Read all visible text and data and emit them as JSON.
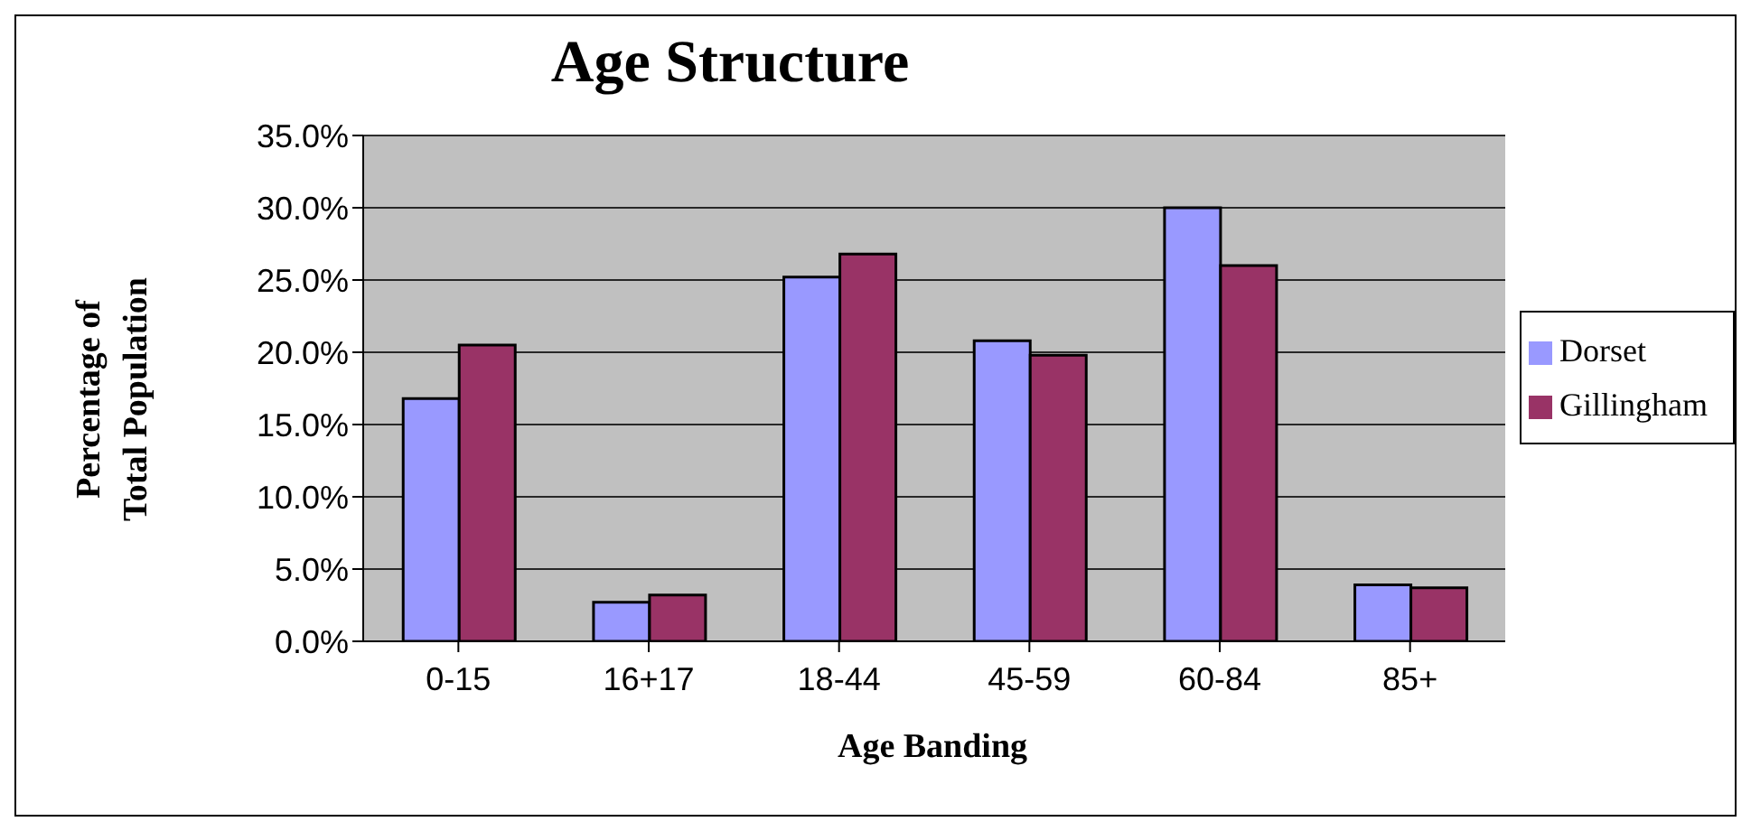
{
  "chart_data": {
    "type": "bar",
    "title": "Age Structure",
    "xlabel": "Age Banding",
    "ylabel": "Percentage of\nTotal Population",
    "categories": [
      "0-15",
      "16+17",
      "18-44",
      "45-59",
      "60-84",
      "85+"
    ],
    "series": [
      {
        "name": "Dorset",
        "color": "#9999ff",
        "values": [
          16.8,
          2.7,
          25.2,
          20.8,
          30.0,
          3.9
        ]
      },
      {
        "name": "Gillingham",
        "color": "#993366",
        "values": [
          20.5,
          3.2,
          26.8,
          19.8,
          26.0,
          3.7
        ]
      }
    ],
    "ylim": [
      0,
      35
    ],
    "yticks": [
      {
        "value": 0,
        "label": "0.0%"
      },
      {
        "value": 5,
        "label": "5.0%"
      },
      {
        "value": 10,
        "label": "10.0%"
      },
      {
        "value": 15,
        "label": "15.0%"
      },
      {
        "value": 20,
        "label": "20.0%"
      },
      {
        "value": 25,
        "label": "25.0%"
      },
      {
        "value": 30,
        "label": "30.0%"
      },
      {
        "value": 35,
        "label": "35.0%"
      }
    ],
    "grid": "y",
    "legend": "right"
  }
}
